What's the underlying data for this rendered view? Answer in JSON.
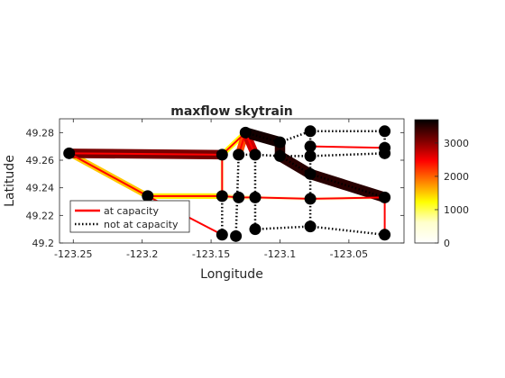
{
  "chart_data": {
    "type": "line",
    "title": "maxflow skytrain",
    "xlabel": "Longitude",
    "ylabel": "Latitude",
    "xlim": [
      -123.26,
      -123.01
    ],
    "ylim": [
      49.2,
      49.29
    ],
    "xticks": [
      -123.25,
      -123.2,
      -123.15,
      -123.1,
      -123.05
    ],
    "xtick_labels": [
      "-123.25",
      "-123.2",
      "-123.15",
      "-123.1",
      "-123.05"
    ],
    "yticks": [
      49.2,
      49.22,
      49.24,
      49.26,
      49.28
    ],
    "ytick_labels": [
      "49.2",
      "49.22",
      "49.24",
      "49.26",
      "49.28"
    ],
    "grid": false,
    "legend": {
      "placement": "bottom-left",
      "entries": [
        {
          "label": "at capacity",
          "style": "solid",
          "color": "#ff0000"
        },
        {
          "label": "not at capacity",
          "style": "dotted",
          "color": "#000000"
        }
      ]
    },
    "colorbar": {
      "range": [
        0,
        3700
      ],
      "ticks": [
        0,
        1000,
        2000,
        3000
      ],
      "tick_labels": [
        "0",
        "1000",
        "2000",
        "3000"
      ],
      "colormap": "hot-reversed",
      "stops": [
        "#000000",
        "#7a0000",
        "#ff0000",
        "#ff8000",
        "#ffff00",
        "#ffffcc",
        "#ffffff"
      ]
    },
    "nodes": [
      {
        "id": "n1",
        "x": -123.253,
        "y": 49.265
      },
      {
        "id": "n2",
        "x": -123.196,
        "y": 49.234
      },
      {
        "id": "n3",
        "x": -123.142,
        "y": 49.264
      },
      {
        "id": "n4",
        "x": -123.142,
        "y": 49.234
      },
      {
        "id": "n5",
        "x": -123.142,
        "y": 49.206
      },
      {
        "id": "n6",
        "x": -123.132,
        "y": 49.205
      },
      {
        "id": "n7",
        "x": -123.13,
        "y": 49.264
      },
      {
        "id": "n8",
        "x": -123.13,
        "y": 49.233
      },
      {
        "id": "n9",
        "x": -123.125,
        "y": 49.28
      },
      {
        "id": "n10",
        "x": -123.118,
        "y": 49.264
      },
      {
        "id": "n11",
        "x": -123.118,
        "y": 49.233
      },
      {
        "id": "n12",
        "x": -123.118,
        "y": 49.21
      },
      {
        "id": "n13",
        "x": -123.1,
        "y": 49.273
      },
      {
        "id": "n14",
        "x": -123.1,
        "y": 49.263
      },
      {
        "id": "n15",
        "x": -123.078,
        "y": 49.281
      },
      {
        "id": "n16",
        "x": -123.078,
        "y": 49.27
      },
      {
        "id": "n17",
        "x": -123.078,
        "y": 49.263
      },
      {
        "id": "n18",
        "x": -123.078,
        "y": 49.25
      },
      {
        "id": "n19",
        "x": -123.078,
        "y": 49.232
      },
      {
        "id": "n20",
        "x": -123.078,
        "y": 49.212
      },
      {
        "id": "n21",
        "x": -123.024,
        "y": 49.281
      },
      {
        "id": "n22",
        "x": -123.024,
        "y": 49.269
      },
      {
        "id": "n23",
        "x": -123.024,
        "y": 49.265
      },
      {
        "id": "n24",
        "x": -123.024,
        "y": 49.233
      },
      {
        "id": "n25",
        "x": -123.024,
        "y": 49.206
      }
    ],
    "edges": [
      {
        "from": "n1",
        "to": "n3",
        "flow": 3100,
        "at_capacity": true
      },
      {
        "from": "n1",
        "to": "n2",
        "flow": 1500,
        "at_capacity": true
      },
      {
        "from": "n2",
        "to": "n4",
        "flow": 1300,
        "at_capacity": true
      },
      {
        "from": "n2",
        "to": "n5",
        "flow": 0,
        "at_capacity": true
      },
      {
        "from": "n4",
        "to": "n8",
        "flow": 800,
        "at_capacity": true
      },
      {
        "from": "n8",
        "to": "n11",
        "flow": 700,
        "at_capacity": true
      },
      {
        "from": "n11",
        "to": "n19",
        "flow": 500,
        "at_capacity": true
      },
      {
        "from": "n19",
        "to": "n24",
        "flow": 500,
        "at_capacity": true
      },
      {
        "from": "n3",
        "to": "n9",
        "flow": 1200,
        "at_capacity": true
      },
      {
        "from": "n3",
        "to": "n4",
        "flow": 600,
        "at_capacity": true
      },
      {
        "from": "n7",
        "to": "n9",
        "flow": 2100,
        "at_capacity": true
      },
      {
        "from": "n9",
        "to": "n10",
        "flow": 2700,
        "at_capacity": true
      },
      {
        "from": "n9",
        "to": "n13",
        "flow": 3600,
        "at_capacity": false
      },
      {
        "from": "n13",
        "to": "n14",
        "flow": 3500,
        "at_capacity": false
      },
      {
        "from": "n14",
        "to": "n18",
        "flow": 3500,
        "at_capacity": false
      },
      {
        "from": "n18",
        "to": "n24",
        "flow": 3500,
        "at_capacity": false
      },
      {
        "from": "n16",
        "to": "n22",
        "flow": 0,
        "at_capacity": true
      },
      {
        "from": "n24",
        "to": "n25",
        "flow": 0,
        "at_capacity": true
      },
      {
        "from": "n7",
        "to": "n10",
        "flow": 0,
        "at_capacity": false
      },
      {
        "from": "n10",
        "to": "n11",
        "flow": 0,
        "at_capacity": false
      },
      {
        "from": "n11",
        "to": "n12",
        "flow": 0,
        "at_capacity": false
      },
      {
        "from": "n4",
        "to": "n5",
        "flow": 0,
        "at_capacity": false
      },
      {
        "from": "n7",
        "to": "n6",
        "flow": 0,
        "at_capacity": false
      },
      {
        "from": "n12",
        "to": "n20",
        "flow": 0,
        "at_capacity": false
      },
      {
        "from": "n20",
        "to": "n25",
        "flow": 0,
        "at_capacity": false
      },
      {
        "from": "n15",
        "to": "n21",
        "flow": 0,
        "at_capacity": false
      },
      {
        "from": "n13",
        "to": "n15",
        "flow": 0,
        "at_capacity": false
      },
      {
        "from": "n14",
        "to": "n17",
        "flow": 0,
        "at_capacity": false
      },
      {
        "from": "n17",
        "to": "n23",
        "flow": 0,
        "at_capacity": false
      },
      {
        "from": "n15",
        "to": "n16",
        "flow": 0,
        "at_capacity": false
      },
      {
        "from": "n16",
        "to": "n17",
        "flow": 0,
        "at_capacity": false
      },
      {
        "from": "n17",
        "to": "n18",
        "flow": 0,
        "at_capacity": false
      },
      {
        "from": "n18",
        "to": "n19",
        "flow": 0,
        "at_capacity": false
      },
      {
        "from": "n19",
        "to": "n20",
        "flow": 0,
        "at_capacity": false
      },
      {
        "from": "n21",
        "to": "n22",
        "flow": 0,
        "at_capacity": false
      },
      {
        "from": "n22",
        "to": "n23",
        "flow": 0,
        "at_capacity": false
      },
      {
        "from": "n10",
        "to": "n14",
        "flow": 0,
        "at_capacity": false
      }
    ]
  }
}
